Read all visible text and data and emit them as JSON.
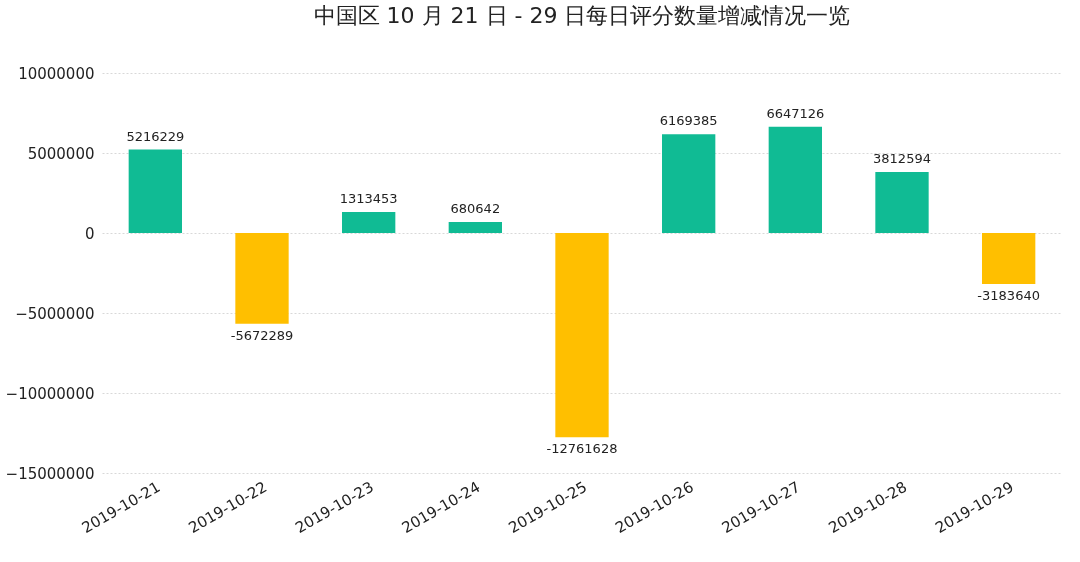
{
  "chart_data": {
    "type": "bar",
    "title": "中国区 10 月 21 日 - 29 日每日评分数量增减情况一览",
    "categories": [
      "2019-10-21",
      "2019-10-22",
      "2019-10-23",
      "2019-10-24",
      "2019-10-25",
      "2019-10-26",
      "2019-10-27",
      "2019-10-28",
      "2019-10-29"
    ],
    "values": [
      5216229,
      -5672289,
      1313453,
      680642,
      -12761628,
      6169385,
      6647126,
      3812594,
      -3183640
    ],
    "colors": [
      "#10bb94",
      "#ffbf00",
      "#10bb94",
      "#10bb94",
      "#ffbf00",
      "#10bb94",
      "#10bb94",
      "#10bb94",
      "#ffbf00"
    ],
    "ylim": [
      -15000000,
      10000000
    ],
    "yticks": [
      -15000000,
      -10000000,
      -5000000,
      0,
      5000000,
      10000000
    ],
    "grid": "y",
    "data_labels": true
  }
}
